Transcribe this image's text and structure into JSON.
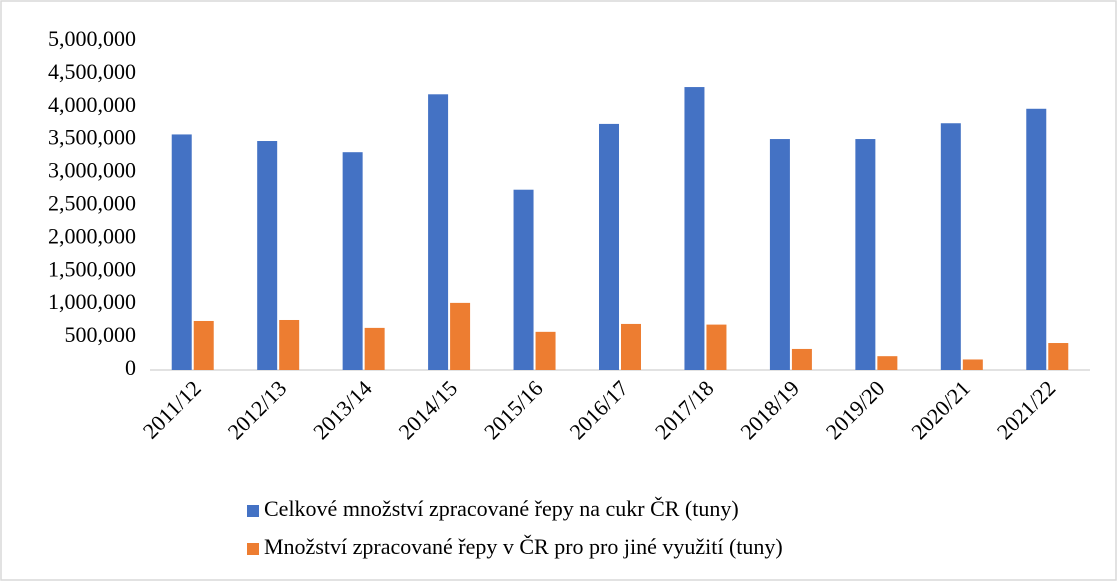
{
  "chart_data": {
    "type": "bar",
    "categories": [
      "2011/12",
      "2012/13",
      "2013/14",
      "2014/15",
      "2015/16",
      "2016/17",
      "2017/18",
      "2018/19",
      "2019/20",
      "2020/21",
      "2021/22"
    ],
    "series": [
      {
        "name": "Celkové množství zpracované řepy na cukr ČR (tuny)",
        "color": "#4472c4",
        "values": [
          3580000,
          3480000,
          3310000,
          4190000,
          2740000,
          3740000,
          4300000,
          3510000,
          3510000,
          3750000,
          3970000
        ]
      },
      {
        "name": "Množství zpracované řepy v ČR pro pro jiné využití  (tuny)",
        "color": "#ed7d31",
        "values": [
          745000,
          760000,
          640000,
          1020000,
          580000,
          700000,
          690000,
          320000,
          210000,
          160000,
          410000
        ]
      }
    ],
    "ylim": [
      0,
      5000000
    ],
    "yticks": [
      0,
      {
        "value": 500000,
        "label": "500,000"
      },
      {
        "value": 1000000,
        "label": "1,000,000"
      },
      {
        "value": 1500000,
        "label": "1,500,000"
      },
      {
        "value": 2000000,
        "label": "2,000,000"
      },
      {
        "value": 2500000,
        "label": "2,500,000"
      },
      {
        "value": 3000000,
        "label": "3,000,000"
      },
      {
        "value": 3500000,
        "label": "3,500,000"
      },
      {
        "value": 4000000,
        "label": "4,000,000"
      },
      {
        "value": 4500000,
        "label": "4,500,000"
      },
      {
        "value": 5000000,
        "label": "5,000,000"
      }
    ],
    "grid": false,
    "legend": "bottom"
  }
}
